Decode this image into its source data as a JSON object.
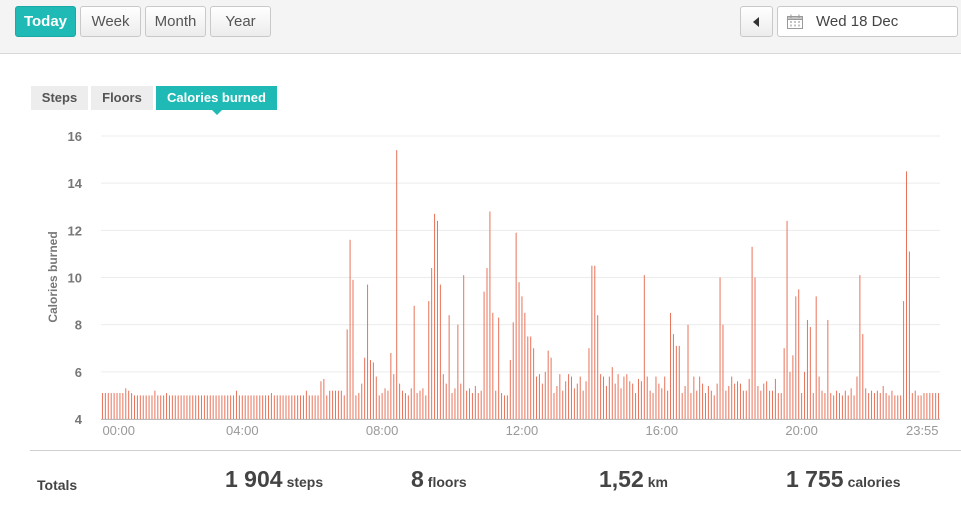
{
  "range_buttons": [
    "Today",
    "Week",
    "Month",
    "Year"
  ],
  "active_range": "Today",
  "date": "Wed 18 Dec",
  "metric_tabs": [
    "Steps",
    "Floors",
    "Calories burned"
  ],
  "active_tab": "Calories burned",
  "totals": {
    "label": "Totals",
    "steps": {
      "value": "1 904",
      "unit": "steps"
    },
    "floors": {
      "value": "8",
      "unit": "floors"
    },
    "distance": {
      "value": "1,52",
      "unit": "km"
    },
    "calories": {
      "value": "1 755",
      "unit": "calories"
    }
  },
  "colors": {
    "accent": "#1fbab5",
    "bar": "#e8735a"
  },
  "chart_data": {
    "type": "bar",
    "ylabel": "Calories burned",
    "xlabel": "",
    "ylim": [
      4,
      16
    ],
    "yticks": [
      4,
      6,
      8,
      10,
      12,
      14,
      16
    ],
    "xtick_labels": [
      "00:00",
      "04:00",
      "08:00",
      "12:00",
      "16:00",
      "20:00",
      "23:55"
    ],
    "interval_minutes": 5,
    "grid": true,
    "base_value": 5,
    "spikes": [
      [
        0,
        8,
        5.1
      ],
      [
        8,
        9,
        5.3
      ],
      [
        9,
        10,
        5.2
      ],
      [
        10,
        11,
        5.1
      ],
      [
        18,
        19,
        5.2
      ],
      [
        22,
        23,
        5.1
      ],
      [
        46,
        47,
        5.2
      ],
      [
        58,
        59,
        5.1
      ],
      [
        70,
        71,
        5.2
      ],
      [
        75,
        76,
        5.6
      ],
      [
        76,
        77,
        5.7
      ],
      [
        78,
        83,
        5.2
      ],
      [
        84,
        85,
        7.8
      ],
      [
        85,
        86,
        11.6
      ],
      [
        86,
        87,
        9.9
      ],
      [
        88,
        89,
        5.1
      ],
      [
        89,
        90,
        5.5
      ],
      [
        90,
        91,
        6.6
      ],
      [
        91,
        92,
        9.7
      ],
      [
        92,
        93,
        6.5
      ],
      [
        93,
        94,
        6.4
      ],
      [
        94,
        95,
        5.8
      ],
      [
        96,
        97,
        5.1
      ],
      [
        97,
        98,
        5.3
      ],
      [
        98,
        99,
        5.2
      ],
      [
        99,
        100,
        6.8
      ],
      [
        100,
        101,
        5.9
      ],
      [
        101,
        102,
        15.4
      ],
      [
        102,
        103,
        5.5
      ],
      [
        103,
        104,
        5.2
      ],
      [
        104,
        105,
        5.1
      ],
      [
        106,
        107,
        5.3
      ],
      [
        107,
        108,
        8.8
      ],
      [
        108,
        109,
        5.1
      ],
      [
        109,
        110,
        5.2
      ],
      [
        110,
        111,
        5.3
      ],
      [
        112,
        113,
        9.0
      ],
      [
        113,
        114,
        10.4
      ],
      [
        114,
        115,
        12.7
      ],
      [
        115,
        116,
        12.4
      ],
      [
        116,
        117,
        9.7
      ],
      [
        117,
        118,
        5.9
      ],
      [
        118,
        119,
        5.5
      ],
      [
        119,
        120,
        8.4
      ],
      [
        120,
        121,
        5.1
      ],
      [
        121,
        122,
        5.3
      ],
      [
        122,
        123,
        8.0
      ],
      [
        123,
        124,
        5.5
      ],
      [
        124,
        125,
        10.1
      ],
      [
        125,
        126,
        5.2
      ],
      [
        126,
        127,
        5.3
      ],
      [
        127,
        128,
        5.1
      ],
      [
        128,
        129,
        5.4
      ],
      [
        129,
        130,
        5.1
      ],
      [
        130,
        131,
        5.2
      ],
      [
        131,
        132,
        9.4
      ],
      [
        132,
        133,
        10.4
      ],
      [
        133,
        134,
        12.8
      ],
      [
        134,
        135,
        8.5
      ],
      [
        135,
        136,
        5.2
      ],
      [
        136,
        137,
        8.3
      ],
      [
        137,
        138,
        5.1
      ],
      [
        140,
        141,
        6.5
      ],
      [
        141,
        142,
        8.1
      ],
      [
        142,
        143,
        11.9
      ],
      [
        143,
        144,
        9.8
      ],
      [
        144,
        145,
        9.2
      ],
      [
        145,
        146,
        8.5
      ],
      [
        146,
        147,
        7.5
      ],
      [
        147,
        148,
        7.5
      ],
      [
        148,
        149,
        7.0
      ],
      [
        149,
        150,
        5.8
      ],
      [
        150,
        151,
        5.9
      ],
      [
        151,
        152,
        5.5
      ],
      [
        152,
        153,
        6.0
      ],
      [
        153,
        154,
        6.9
      ],
      [
        154,
        155,
        6.6
      ],
      [
        155,
        156,
        5.1
      ],
      [
        156,
        157,
        5.4
      ],
      [
        157,
        158,
        5.9
      ],
      [
        158,
        159,
        5.2
      ],
      [
        159,
        160,
        5.6
      ],
      [
        160,
        161,
        5.9
      ],
      [
        161,
        162,
        5.8
      ],
      [
        162,
        163,
        5.3
      ],
      [
        163,
        164,
        5.5
      ],
      [
        164,
        165,
        5.8
      ],
      [
        165,
        166,
        5.2
      ],
      [
        166,
        167,
        5.6
      ],
      [
        167,
        168,
        7.0
      ],
      [
        168,
        169,
        10.5
      ],
      [
        169,
        170,
        10.5
      ],
      [
        170,
        171,
        8.4
      ],
      [
        171,
        172,
        5.9
      ],
      [
        172,
        173,
        5.8
      ],
      [
        173,
        174,
        5.4
      ],
      [
        174,
        175,
        5.8
      ],
      [
        175,
        176,
        6.2
      ],
      [
        176,
        177,
        5.5
      ],
      [
        177,
        178,
        5.9
      ],
      [
        178,
        179,
        5.3
      ],
      [
        179,
        180,
        5.8
      ],
      [
        180,
        181,
        5.9
      ],
      [
        181,
        182,
        5.6
      ],
      [
        182,
        183,
        5.5
      ],
      [
        183,
        184,
        5.1
      ],
      [
        184,
        185,
        5.7
      ],
      [
        185,
        186,
        5.6
      ],
      [
        186,
        187,
        10.1
      ],
      [
        187,
        188,
        5.8
      ],
      [
        188,
        189,
        5.2
      ],
      [
        189,
        190,
        5.1
      ],
      [
        190,
        191,
        5.8
      ],
      [
        191,
        192,
        5.5
      ],
      [
        192,
        193,
        5.3
      ],
      [
        193,
        194,
        5.8
      ],
      [
        194,
        195,
        5.2
      ],
      [
        195,
        196,
        8.5
      ],
      [
        196,
        197,
        7.6
      ],
      [
        197,
        198,
        7.1
      ],
      [
        198,
        199,
        7.1
      ],
      [
        199,
        200,
        5.1
      ],
      [
        200,
        201,
        5.4
      ],
      [
        201,
        202,
        8.0
      ],
      [
        202,
        203,
        5.1
      ],
      [
        203,
        204,
        5.8
      ],
      [
        204,
        205,
        5.2
      ],
      [
        205,
        206,
        5.8
      ],
      [
        206,
        207,
        5.5
      ],
      [
        207,
        208,
        5.1
      ],
      [
        208,
        209,
        5.4
      ],
      [
        209,
        210,
        5.2
      ],
      [
        211,
        212,
        5.5
      ],
      [
        212,
        213,
        10.0
      ],
      [
        213,
        214,
        8.0
      ],
      [
        214,
        215,
        5.2
      ],
      [
        215,
        216,
        5.4
      ],
      [
        216,
        217,
        5.8
      ],
      [
        217,
        218,
        5.5
      ],
      [
        218,
        219,
        5.6
      ],
      [
        219,
        220,
        5.5
      ],
      [
        220,
        221,
        5.2
      ],
      [
        221,
        222,
        5.2
      ],
      [
        222,
        223,
        5.7
      ],
      [
        223,
        224,
        11.3
      ],
      [
        224,
        225,
        10.0
      ],
      [
        225,
        226,
        5.4
      ],
      [
        226,
        227,
        5.2
      ],
      [
        227,
        228,
        5.5
      ],
      [
        228,
        229,
        5.6
      ],
      [
        229,
        230,
        5.2
      ],
      [
        230,
        231,
        5.2
      ],
      [
        231,
        232,
        5.7
      ],
      [
        232,
        233,
        5.1
      ],
      [
        233,
        234,
        5.1
      ],
      [
        234,
        235,
        7.0
      ],
      [
        235,
        236,
        12.4
      ],
      [
        236,
        237,
        6.0
      ],
      [
        237,
        238,
        6.7
      ],
      [
        238,
        239,
        9.2
      ],
      [
        239,
        240,
        9.5
      ],
      [
        240,
        241,
        5.1
      ],
      [
        241,
        242,
        6.0
      ],
      [
        242,
        243,
        8.2
      ],
      [
        243,
        244,
        7.9
      ],
      [
        244,
        245,
        5.1
      ],
      [
        245,
        246,
        9.2
      ],
      [
        246,
        247,
        5.8
      ],
      [
        247,
        248,
        5.2
      ],
      [
        248,
        249,
        5.1
      ],
      [
        249,
        250,
        8.2
      ],
      [
        250,
        251,
        5.1
      ],
      [
        252,
        253,
        5.2
      ],
      [
        253,
        254,
        5.1
      ],
      [
        255,
        256,
        5.2
      ],
      [
        257,
        258,
        5.3
      ],
      [
        259,
        260,
        5.8
      ],
      [
        260,
        261,
        10.1
      ],
      [
        261,
        262,
        7.6
      ],
      [
        262,
        263,
        5.3
      ],
      [
        263,
        264,
        5.1
      ],
      [
        264,
        265,
        5.2
      ],
      [
        265,
        266,
        5.1
      ],
      [
        266,
        267,
        5.2
      ],
      [
        267,
        268,
        5.1
      ],
      [
        268,
        269,
        5.4
      ],
      [
        269,
        270,
        5.1
      ],
      [
        271,
        272,
        5.2
      ],
      [
        275,
        276,
        9.0
      ],
      [
        276,
        277,
        14.5
      ],
      [
        277,
        278,
        11.1
      ],
      [
        278,
        279,
        5.1
      ],
      [
        279,
        280,
        5.2
      ],
      [
        282,
        288,
        5.1
      ]
    ]
  }
}
